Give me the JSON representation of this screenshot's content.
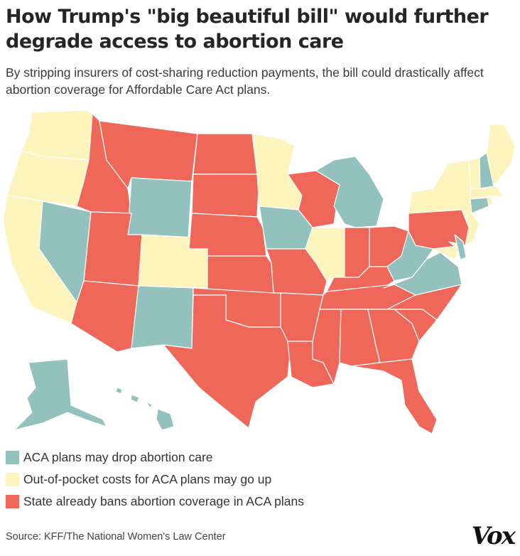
{
  "header": {
    "title": "How Trump's \"big beautiful bill\" would further degrade access to abortion care",
    "subtitle": "By stripping insurers of cost-sharing reduction payments, the bill could drastically affect abortion coverage for Affordable Care Act plans."
  },
  "colors": {
    "aca_drop": "#93c1bd",
    "costs_up": "#fbf4bc",
    "already_bans": "#ee6758"
  },
  "map": {
    "categories": {
      "aca_drop": [
        "NV",
        "WY",
        "IA",
        "MI",
        "NM",
        "WV",
        "VA",
        "NH",
        "CT",
        "DE",
        "AK",
        "HI"
      ],
      "costs_up": [
        "WA",
        "OR",
        "CA",
        "CO",
        "MN",
        "IL",
        "NY",
        "VT",
        "ME",
        "MA",
        "RI",
        "NJ",
        "MD"
      ],
      "already_bans": [
        "ID",
        "MT",
        "ND",
        "SD",
        "NE",
        "KS",
        "OK",
        "TX",
        "UT",
        "AZ",
        "MO",
        "AR",
        "LA",
        "WI",
        "IN",
        "OH",
        "KY",
        "TN",
        "MS",
        "AL",
        "GA",
        "FL",
        "SC",
        "NC",
        "PA"
      ]
    }
  },
  "legend": [
    {
      "key": "aca_drop",
      "label": "ACA plans may drop abortion care"
    },
    {
      "key": "costs_up",
      "label": "Out-of-pocket costs for ACA plans may go up"
    },
    {
      "key": "already_bans",
      "label": "State already bans abortion coverage in ACA plans"
    }
  ],
  "footer": {
    "source": "Source: KFF/The National Women's Law Center",
    "logo": "Vox"
  }
}
